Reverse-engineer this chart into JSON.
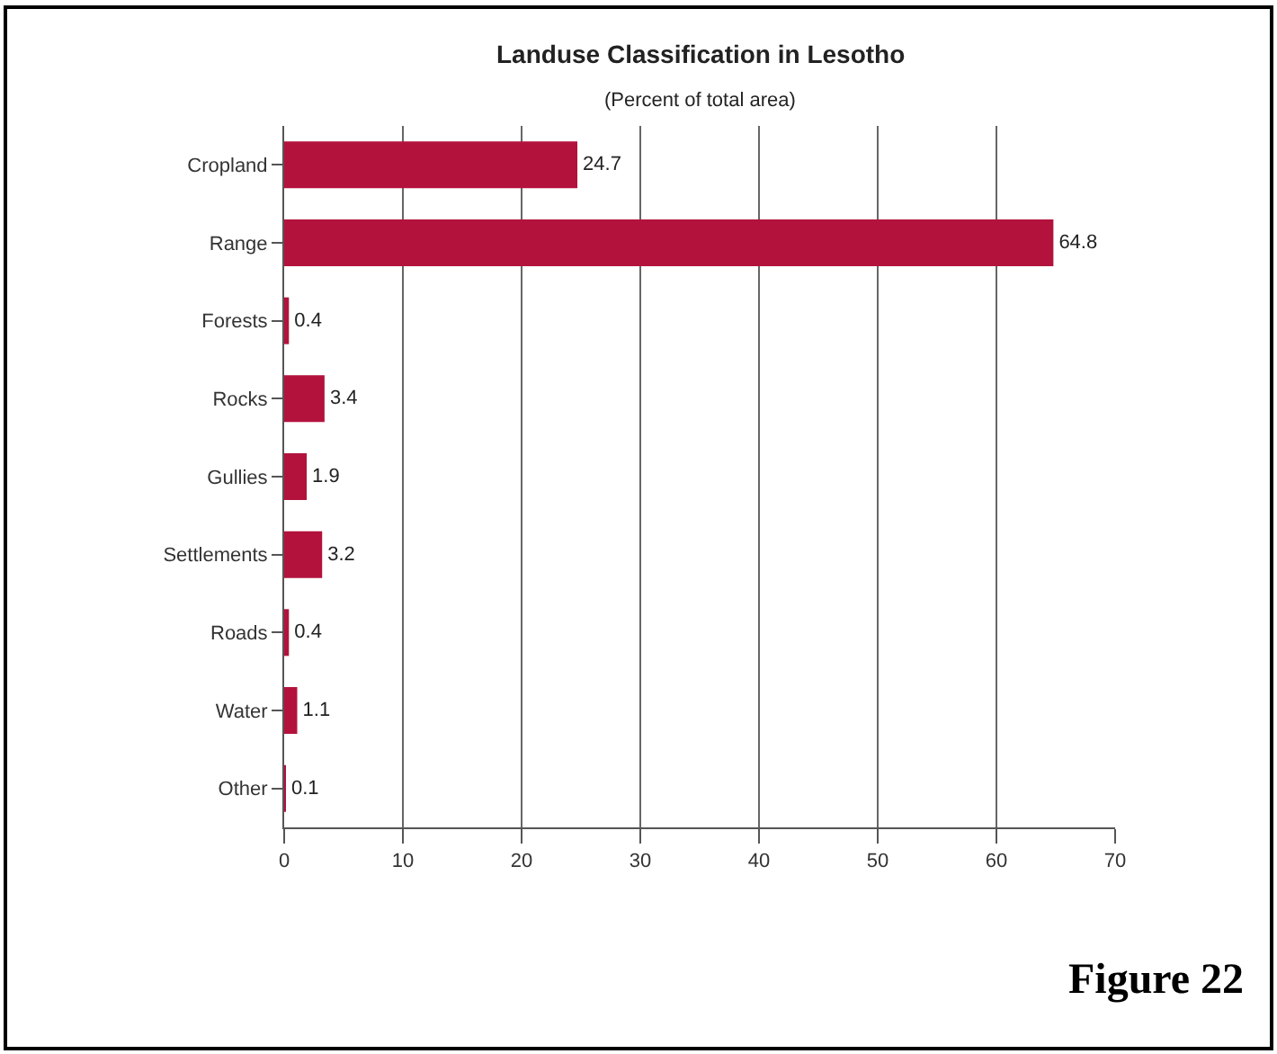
{
  "chart_data": {
    "type": "bar",
    "orientation": "horizontal",
    "title": "Landuse Classification in Lesotho",
    "subtitle": "(Percent of total area)",
    "categories": [
      "Cropland",
      "Range",
      "Forests",
      "Rocks",
      "Gullies",
      "Settlements",
      "Roads",
      "Water",
      "Other"
    ],
    "values": [
      24.7,
      64.8,
      0.4,
      3.4,
      1.9,
      3.2,
      0.4,
      1.1,
      0.1
    ],
    "color": "#b3123d",
    "xlim": [
      0,
      70
    ],
    "xticks": [
      0,
      10,
      20,
      30,
      40,
      50,
      60,
      70
    ],
    "grid": "x",
    "data_labels": true,
    "legend": false,
    "annotations": [
      "Figure 22"
    ]
  }
}
